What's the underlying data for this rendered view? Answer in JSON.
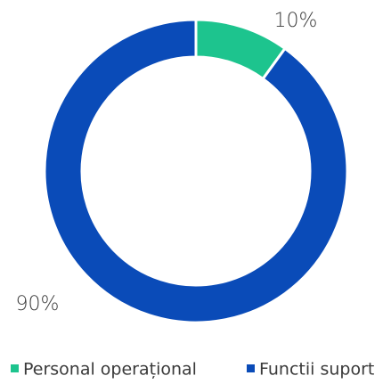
{
  "chart_data": {
    "type": "pie",
    "categories": [
      "Personal operațional",
      "Functii suport"
    ],
    "values": [
      10,
      90
    ],
    "value_labels": [
      "10%",
      "90%"
    ],
    "colors": [
      "#1dc48e",
      "#0a4bb8"
    ],
    "donut": true,
    "legend": "bottom"
  }
}
